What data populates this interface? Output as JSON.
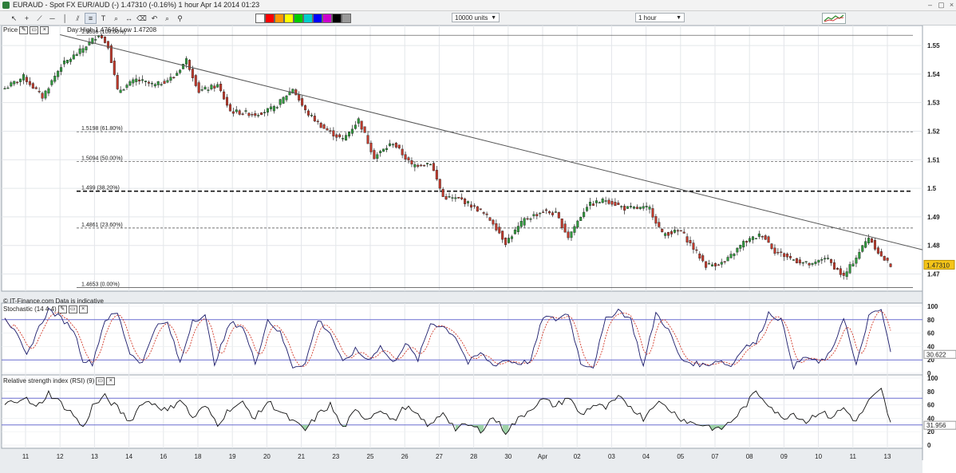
{
  "window": {
    "title": "EURAUD - Spot FX EUR/AUD (-)    1.47310 (-0.16%)    1 hour   Apr 14 2014 01:23"
  },
  "toolbar": {
    "units_select": "10000 units",
    "interval_select": "1 hour",
    "icons": [
      "pointer-icon",
      "crosshair-icon",
      "trendline-icon",
      "horizontal-line-icon",
      "vertical-line-icon",
      "parallel-channel-icon",
      "fibonacci-icon",
      "text-icon",
      "zoom-icon",
      "measure-icon",
      "delete-icon",
      "undo-icon",
      "search-icon",
      "pin-icon"
    ],
    "swatches": [
      "#ffffff",
      "#ff0000",
      "#ff9900",
      "#ffff00",
      "#00cc00",
      "#00cccc",
      "#0000ff",
      "#cc00cc",
      "#000000",
      "#999999"
    ]
  },
  "panels": {
    "price": {
      "label": "Price",
      "info": "Day:High 1.47646 Low 1.47208",
      "footer": "© IT-Finance.com   Data is indicative"
    },
    "stochastic": {
      "label": "Stochastic (14 4 4)",
      "last_value": "30.622"
    },
    "rsi": {
      "label": "Relative strength index (RSI) (9)",
      "last_value": "31.956"
    }
  },
  "chart_data": [
    {
      "type": "candlestick",
      "title": "EURAUD - Spot FX EUR/AUD (-)",
      "interval": "1 hour",
      "last_price": 1.4731,
      "last_price_label": "1.47310",
      "ylim": [
        1.464,
        1.557
      ],
      "yticks": [
        1.47,
        1.48,
        1.49,
        1.5,
        1.51,
        1.52,
        1.53,
        1.54,
        1.55
      ],
      "ytick_labels": [
        "1.47",
        "1.48",
        "1.49",
        "1.5",
        "1.51",
        "1.52",
        "1.53",
        "1.54",
        "1.55"
      ],
      "xtick_labels": [
        "11",
        "12",
        "13",
        "14",
        "16",
        "18",
        "19",
        "20",
        "21",
        "23",
        "25",
        "26",
        "27",
        "28",
        "30",
        "Apr",
        "02",
        "03",
        "04",
        "05",
        "07",
        "08",
        "09",
        "10",
        "11",
        "13"
      ],
      "path_key_points": [
        [
          0,
          1.535
        ],
        [
          6,
          1.539
        ],
        [
          12,
          1.532
        ],
        [
          18,
          1.543
        ],
        [
          24,
          1.548
        ],
        [
          30,
          1.554
        ],
        [
          33,
          1.55
        ],
        [
          36,
          1.534
        ],
        [
          42,
          1.538
        ],
        [
          48,
          1.536
        ],
        [
          54,
          1.539
        ],
        [
          58,
          1.545
        ],
        [
          62,
          1.534
        ],
        [
          68,
          1.536
        ],
        [
          72,
          1.527
        ],
        [
          80,
          1.526
        ],
        [
          86,
          1.528
        ],
        [
          92,
          1.535
        ],
        [
          96,
          1.527
        ],
        [
          102,
          1.521
        ],
        [
          108,
          1.517
        ],
        [
          113,
          1.524
        ],
        [
          118,
          1.511
        ],
        [
          124,
          1.516
        ],
        [
          130,
          1.508
        ],
        [
          136,
          1.509
        ],
        [
          140,
          1.497
        ],
        [
          146,
          1.496
        ],
        [
          152,
          1.492
        ],
        [
          156,
          1.488
        ],
        [
          160,
          1.481
        ],
        [
          166,
          1.489
        ],
        [
          172,
          1.492
        ],
        [
          176,
          1.491
        ],
        [
          180,
          1.483
        ],
        [
          186,
          1.494
        ],
        [
          192,
          1.496
        ],
        [
          198,
          1.493
        ],
        [
          206,
          1.493
        ],
        [
          210,
          1.484
        ],
        [
          216,
          1.485
        ],
        [
          220,
          1.479
        ],
        [
          224,
          1.473
        ],
        [
          230,
          1.474
        ],
        [
          236,
          1.481
        ],
        [
          242,
          1.484
        ],
        [
          246,
          1.478
        ],
        [
          252,
          1.475
        ],
        [
          258,
          1.473
        ],
        [
          262,
          1.476
        ],
        [
          268,
          1.469
        ],
        [
          272,
          1.476
        ],
        [
          276,
          1.483
        ],
        [
          280,
          1.476
        ],
        [
          283,
          1.4731
        ]
      ],
      "trendline": {
        "from": [
          "12",
          1.5538
        ],
        "to": [
          "13",
          1.4785
        ]
      },
      "fibonacci": [
        {
          "label": "1.5536 (100.00%)",
          "value": 1.5536,
          "style": "solid"
        },
        {
          "label": "1.5198 (61.80%)",
          "value": 1.5198,
          "style": "dashed"
        },
        {
          "label": "1.5094 (50.00%)",
          "value": 1.5094,
          "style": "dashed"
        },
        {
          "label": "1.499 (38.20%)",
          "value": 1.499,
          "style": "bold-dashed"
        },
        {
          "label": "1.4861 (23.60%)",
          "value": 1.4861,
          "style": "dashed"
        },
        {
          "label": "1.4653 (0.00%)",
          "value": 1.4653,
          "style": "solid"
        }
      ],
      "grid": true,
      "legend": "top-left"
    },
    {
      "type": "line",
      "title": "Stochastic (14 4 4)",
      "ylim": [
        0,
        100
      ],
      "ytick_labels": [
        "0",
        "20",
        "40",
        "60",
        "80",
        "100"
      ],
      "levels": [
        20,
        80
      ],
      "last_value": 30.622,
      "k_key_points": [
        [
          0,
          85
        ],
        [
          4,
          55
        ],
        [
          7,
          25
        ],
        [
          10,
          60
        ],
        [
          14,
          95
        ],
        [
          18,
          82
        ],
        [
          22,
          65
        ],
        [
          25,
          20
        ],
        [
          28,
          15
        ],
        [
          32,
          80
        ],
        [
          36,
          90
        ],
        [
          40,
          30
        ],
        [
          44,
          15
        ],
        [
          48,
          70
        ],
        [
          52,
          75
        ],
        [
          56,
          15
        ],
        [
          60,
          80
        ],
        [
          64,
          85
        ],
        [
          67,
          15
        ],
        [
          72,
          75
        ],
        [
          76,
          70
        ],
        [
          80,
          15
        ],
        [
          84,
          80
        ],
        [
          88,
          60
        ],
        [
          92,
          10
        ],
        [
          96,
          15
        ],
        [
          100,
          80
        ],
        [
          104,
          60
        ],
        [
          108,
          15
        ],
        [
          112,
          35
        ],
        [
          116,
          20
        ],
        [
          120,
          40
        ],
        [
          124,
          15
        ],
        [
          128,
          45
        ],
        [
          132,
          20
        ],
        [
          136,
          75
        ],
        [
          140,
          70
        ],
        [
          144,
          55
        ],
        [
          148,
          15
        ],
        [
          152,
          30
        ],
        [
          156,
          12
        ],
        [
          160,
          20
        ],
        [
          164,
          15
        ],
        [
          168,
          18
        ],
        [
          172,
          85
        ],
        [
          176,
          80
        ],
        [
          180,
          90
        ],
        [
          184,
          15
        ],
        [
          188,
          10
        ],
        [
          192,
          80
        ],
        [
          196,
          95
        ],
        [
          200,
          80
        ],
        [
          204,
          10
        ],
        [
          208,
          90
        ],
        [
          212,
          65
        ],
        [
          216,
          20
        ],
        [
          220,
          15
        ],
        [
          224,
          12
        ],
        [
          228,
          20
        ],
        [
          232,
          10
        ],
        [
          236,
          40
        ],
        [
          240,
          45
        ],
        [
          244,
          90
        ],
        [
          248,
          80
        ],
        [
          252,
          10
        ],
        [
          256,
          25
        ],
        [
          260,
          15
        ],
        [
          264,
          30
        ],
        [
          268,
          85
        ],
        [
          272,
          10
        ],
        [
          276,
          85
        ],
        [
          280,
          95
        ],
        [
          283,
          30.6
        ]
      ],
      "grid": true
    },
    {
      "type": "line",
      "title": "Relative strength index (RSI) (9)",
      "ylim": [
        0,
        100
      ],
      "ytick_labels": [
        "0",
        "20",
        "40",
        "60",
        "80",
        "100"
      ],
      "levels": [
        30,
        70
      ],
      "last_value": 31.956,
      "key_points": [
        [
          0,
          60
        ],
        [
          6,
          72
        ],
        [
          10,
          55
        ],
        [
          14,
          78
        ],
        [
          18,
          62
        ],
        [
          22,
          45
        ],
        [
          25,
          25
        ],
        [
          28,
          58
        ],
        [
          32,
          72
        ],
        [
          36,
          55
        ],
        [
          40,
          35
        ],
        [
          44,
          65
        ],
        [
          48,
          62
        ],
        [
          52,
          50
        ],
        [
          56,
          70
        ],
        [
          60,
          40
        ],
        [
          64,
          58
        ],
        [
          68,
          32
        ],
        [
          72,
          55
        ],
        [
          76,
          62
        ],
        [
          80,
          40
        ],
        [
          84,
          65
        ],
        [
          88,
          50
        ],
        [
          92,
          35
        ],
        [
          96,
          22
        ],
        [
          100,
          45
        ],
        [
          104,
          60
        ],
        [
          108,
          25
        ],
        [
          112,
          50
        ],
        [
          116,
          40
        ],
        [
          120,
          55
        ],
        [
          124,
          35
        ],
        [
          128,
          58
        ],
        [
          132,
          42
        ],
        [
          136,
          28
        ],
        [
          140,
          50
        ],
        [
          144,
          24
        ],
        [
          148,
          30
        ],
        [
          152,
          22
        ],
        [
          156,
          42
        ],
        [
          160,
          20
        ],
        [
          164,
          38
        ],
        [
          168,
          55
        ],
        [
          172,
          68
        ],
        [
          176,
          58
        ],
        [
          180,
          72
        ],
        [
          184,
          45
        ],
        [
          188,
          60
        ],
        [
          192,
          55
        ],
        [
          196,
          70
        ],
        [
          200,
          58
        ],
        [
          204,
          40
        ],
        [
          208,
          65
        ],
        [
          212,
          55
        ],
        [
          216,
          40
        ],
        [
          220,
          32
        ],
        [
          224,
          30
        ],
        [
          228,
          22
        ],
        [
          232,
          35
        ],
        [
          236,
          55
        ],
        [
          240,
          80
        ],
        [
          244,
          62
        ],
        [
          248,
          40
        ],
        [
          252,
          48
        ],
        [
          256,
          35
        ],
        [
          260,
          50
        ],
        [
          264,
          42
        ],
        [
          268,
          55
        ],
        [
          272,
          35
        ],
        [
          276,
          65
        ],
        [
          280,
          82
        ],
        [
          283,
          31.96
        ]
      ],
      "grid": true
    }
  ]
}
